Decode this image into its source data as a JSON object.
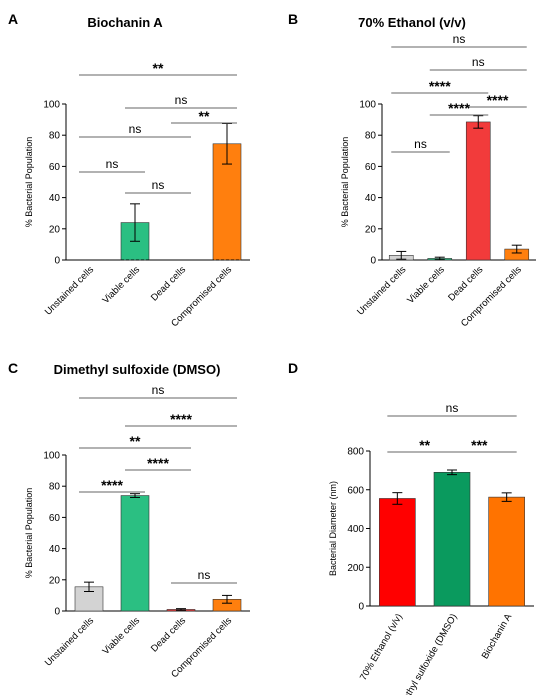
{
  "chart_data": [
    {
      "type": "bar",
      "panel": "A",
      "title": "Biochanin A",
      "ylabel": "% Bacterial Population",
      "ylim": [
        0,
        100
      ],
      "yticks": [
        0,
        20,
        40,
        60,
        80,
        100
      ],
      "categories": [
        "Unstained cells",
        "Viable cells",
        "Dead cells",
        "Compromised cells"
      ],
      "values": [
        0,
        24,
        0,
        74.5
      ],
      "errors": [
        0,
        12,
        0,
        13
      ],
      "colors": [
        "#d3d3d3",
        "#2bbf82",
        "#f23b3b",
        "#ff7f0e"
      ],
      "comparisons": [
        {
          "from": 0,
          "to": 3,
          "label": "**"
        },
        {
          "from": 1,
          "to": 3,
          "label": "ns"
        },
        {
          "from": 0,
          "to": 2,
          "label": "ns"
        },
        {
          "from": 2,
          "to": 3,
          "label": "**"
        },
        {
          "from": 0,
          "to": 1,
          "label": "ns"
        },
        {
          "from": 1,
          "to": 2,
          "label": "ns"
        }
      ]
    },
    {
      "type": "bar",
      "panel": "B",
      "title": "70% Ethanol (v/v)",
      "ylabel": "% Bacterial Population",
      "ylim": [
        0,
        100
      ],
      "yticks": [
        0,
        20,
        40,
        60,
        80,
        100
      ],
      "categories": [
        "Unstained cells",
        "Viable cells",
        "Dead cells",
        "Compromised cells"
      ],
      "values": [
        3,
        1,
        88.5,
        7
      ],
      "errors": [
        2.5,
        0.8,
        4,
        2.5
      ],
      "colors": [
        "#d3d3d3",
        "#2bbf82",
        "#f23b3b",
        "#ff7f0e"
      ],
      "comparisons": [
        {
          "from": 0,
          "to": 3,
          "label": "ns"
        },
        {
          "from": 1,
          "to": 3,
          "label": "ns"
        },
        {
          "from": 0,
          "to": 2,
          "label": "****"
        },
        {
          "from": 2,
          "to": 3,
          "label": "****"
        },
        {
          "from": 1,
          "to": 2,
          "label": "****"
        },
        {
          "from": 0,
          "to": 1,
          "label": "ns"
        }
      ]
    },
    {
      "type": "bar",
      "panel": "C",
      "title": "Dimethyl sulfoxide (DMSO)",
      "ylabel": "% Bacterial Population",
      "ylim": [
        0,
        100
      ],
      "yticks": [
        0,
        20,
        40,
        60,
        80,
        100
      ],
      "categories": [
        "Unstained cells",
        "Viable cells",
        "Dead cells",
        "Compromised cells"
      ],
      "values": [
        15.5,
        74,
        1,
        7.5
      ],
      "errors": [
        3,
        1.2,
        0.5,
        2.5
      ],
      "colors": [
        "#d3d3d3",
        "#2bbf82",
        "#f23b3b",
        "#ff7f0e"
      ],
      "comparisons": [
        {
          "from": 0,
          "to": 3,
          "label": "ns"
        },
        {
          "from": 1,
          "to": 3,
          "label": "****"
        },
        {
          "from": 0,
          "to": 2,
          "label": "**"
        },
        {
          "from": 1,
          "to": 2,
          "label": "****"
        },
        {
          "from": 0,
          "to": 1,
          "label": "****"
        },
        {
          "from": 2,
          "to": 3,
          "label": "ns"
        }
      ]
    },
    {
      "type": "bar",
      "panel": "D",
      "title": "",
      "ylabel": "Bacterial Diameter (nm)",
      "ylim": [
        0,
        800
      ],
      "yticks": [
        0,
        200,
        400,
        600,
        800
      ],
      "categories": [
        "70% Ethanol (v/v)",
        "Dimethyl sulfoxide (DMSO)",
        "Biochanin A"
      ],
      "values": [
        555,
        690,
        562
      ],
      "errors": [
        30,
        12,
        22
      ],
      "colors": [
        "#ff0000",
        "#0a9a5e",
        "#ff7300"
      ],
      "comparisons": [
        {
          "from": 0,
          "to": 2,
          "label": "ns"
        },
        {
          "from": 0,
          "to": 1,
          "label": "**"
        },
        {
          "from": 1,
          "to": 2,
          "label": "***"
        }
      ]
    }
  ]
}
